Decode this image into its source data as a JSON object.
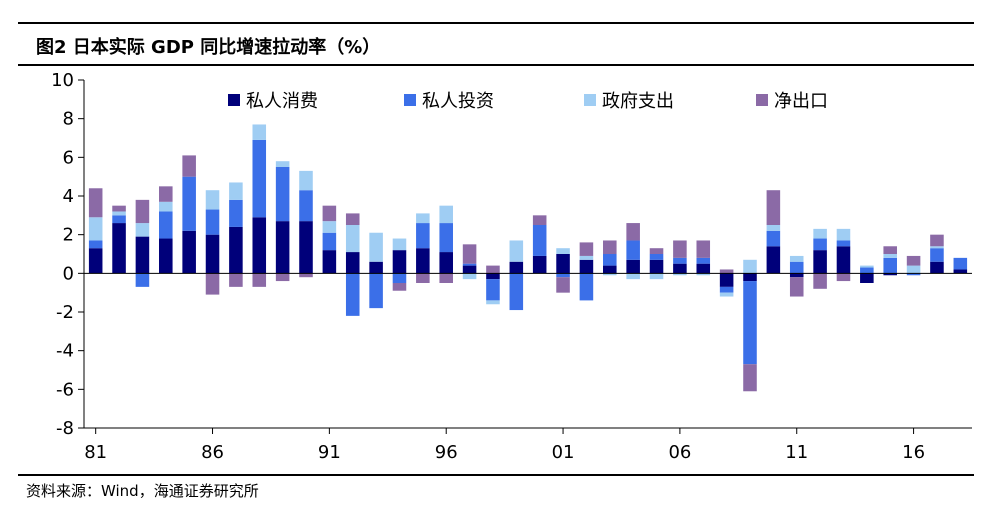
{
  "title": "图2 日本实际 GDP 同比增速拉动率（%）",
  "source": "资料来源：Wind，海通证券研究所",
  "colors": {
    "private_consumption": "#00007a",
    "private_investment": "#3b6fe8",
    "government_spending": "#9fcdf3",
    "net_exports": "#8b6aa6"
  },
  "chart_data": {
    "type": "bar",
    "stacked": true,
    "ylim": [
      -8,
      10
    ],
    "yticks": [
      10,
      8,
      6,
      4,
      2,
      0,
      -2,
      -4,
      -6,
      -8
    ],
    "xtick_labels": [
      {
        "label": "81",
        "year": 1981
      },
      {
        "label": "86",
        "year": 1986
      },
      {
        "label": "91",
        "year": 1991
      },
      {
        "label": "96",
        "year": 1996
      },
      {
        "label": "01",
        "year": 2001
      },
      {
        "label": "06",
        "year": 2006
      },
      {
        "label": "11",
        "year": 2011
      },
      {
        "label": "16",
        "year": 2016
      }
    ],
    "legend_position": "top",
    "categories": [
      1981,
      1982,
      1983,
      1984,
      1985,
      1986,
      1987,
      1988,
      1989,
      1990,
      1991,
      1992,
      1993,
      1994,
      1995,
      1996,
      1997,
      1998,
      1999,
      2000,
      2001,
      2002,
      2003,
      2004,
      2005,
      2006,
      2007,
      2008,
      2009,
      2010,
      2011,
      2012,
      2013,
      2014,
      2015,
      2016,
      2017,
      2018
    ],
    "series": [
      {
        "name": "私人消费",
        "color": "#00007a",
        "values": [
          1.3,
          2.6,
          1.9,
          1.8,
          2.2,
          2.0,
          2.4,
          2.9,
          2.7,
          2.7,
          1.2,
          1.1,
          0.6,
          1.2,
          1.3,
          1.1,
          0.4,
          -0.3,
          0.6,
          0.9,
          1.0,
          0.7,
          0.4,
          0.7,
          0.7,
          0.5,
          0.5,
          -0.7,
          -0.4,
          1.4,
          -0.2,
          1.2,
          1.4,
          -0.5,
          -0.1,
          0.0,
          0.6,
          0.2
        ]
      },
      {
        "name": "私人投资",
        "color": "#3b6fe8",
        "values": [
          0.4,
          0.4,
          -0.7,
          1.4,
          2.8,
          1.3,
          1.4,
          4.0,
          2.8,
          1.6,
          0.9,
          -2.2,
          -1.8,
          -0.5,
          1.3,
          1.5,
          0.1,
          -1.1,
          -1.9,
          1.6,
          -0.2,
          -1.4,
          0.6,
          1.0,
          0.3,
          0.3,
          0.3,
          -0.3,
          -4.3,
          0.8,
          0.6,
          0.6,
          0.3,
          0.3,
          0.8,
          -0.1,
          0.7,
          0.6
        ]
      },
      {
        "name": "政府支出",
        "color": "#9fcdf3",
        "values": [
          1.2,
          0.2,
          0.7,
          0.5,
          0.0,
          1.0,
          0.9,
          0.8,
          0.3,
          1.0,
          0.6,
          1.4,
          1.5,
          0.6,
          0.5,
          0.9,
          -0.3,
          -0.2,
          1.1,
          0.0,
          0.3,
          0.2,
          -0.1,
          -0.3,
          -0.3,
          -0.1,
          -0.1,
          -0.2,
          0.7,
          0.3,
          0.3,
          0.5,
          0.6,
          0.1,
          0.2,
          0.4,
          0.1,
          0.0
        ]
      },
      {
        "name": "净出口",
        "color": "#8b6aa6",
        "values": [
          1.5,
          0.3,
          1.2,
          0.8,
          1.1,
          -1.1,
          -0.7,
          -0.7,
          -0.4,
          -0.2,
          0.8,
          0.6,
          0.0,
          -0.4,
          -0.5,
          -0.5,
          1.0,
          0.4,
          0.0,
          0.5,
          -0.8,
          0.7,
          0.7,
          0.9,
          0.3,
          0.9,
          0.9,
          0.2,
          -1.4,
          1.8,
          -1.0,
          -0.8,
          -0.4,
          0.0,
          0.4,
          0.5,
          0.6,
          0.0
        ]
      }
    ]
  }
}
